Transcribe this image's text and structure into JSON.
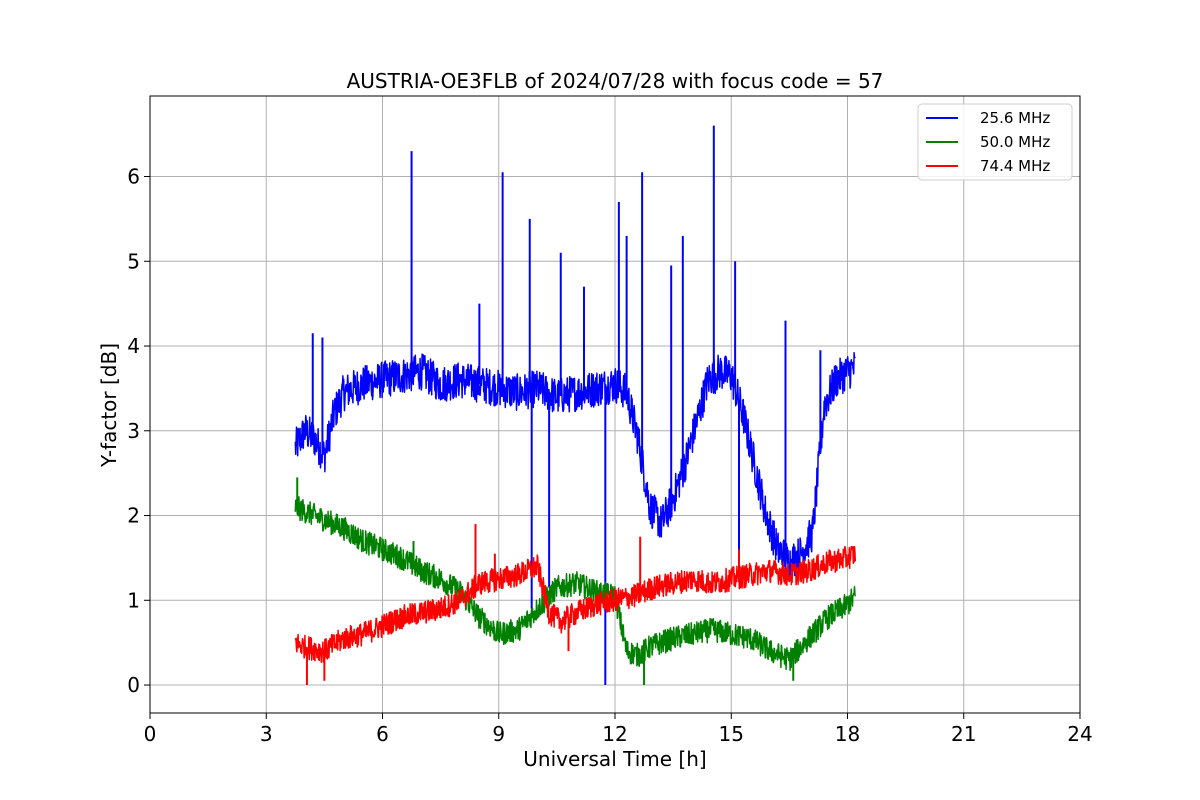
{
  "chart_data": {
    "type": "line",
    "title": "AUSTRIA-OE3FLB of 2024/07/28 with focus code = 57",
    "xlabel": "Universal Time [h]",
    "ylabel": "Y-factor [dB]",
    "xlim": [
      0,
      24
    ],
    "ylim": [
      -0.33,
      6.95
    ],
    "xticks": [
      0,
      3,
      6,
      9,
      12,
      15,
      18,
      21,
      24
    ],
    "yticks": [
      0,
      1,
      2,
      3,
      4,
      5,
      6
    ],
    "grid": true,
    "legend": "top-right",
    "series": [
      {
        "name": "25.6 MHz",
        "color": "#0000ff",
        "x": [
          3.75,
          4.0,
          4.25,
          4.5,
          4.75,
          5.0,
          5.5,
          6.0,
          6.5,
          7.0,
          7.5,
          8.0,
          8.5,
          9.0,
          9.5,
          10.0,
          10.5,
          11.0,
          11.5,
          12.0,
          12.3,
          12.6,
          12.9,
          13.2,
          13.5,
          13.8,
          14.1,
          14.4,
          14.7,
          15.0,
          15.3,
          15.6,
          15.9,
          16.2,
          16.5,
          16.8,
          17.1,
          17.4,
          17.7,
          18.0,
          18.2
        ],
        "y": [
          2.8,
          3.0,
          2.9,
          2.7,
          3.2,
          3.45,
          3.55,
          3.6,
          3.65,
          3.7,
          3.55,
          3.6,
          3.55,
          3.5,
          3.45,
          3.5,
          3.4,
          3.45,
          3.5,
          3.55,
          3.45,
          2.9,
          2.1,
          1.9,
          2.2,
          2.6,
          3.1,
          3.6,
          3.7,
          3.65,
          3.2,
          2.6,
          2.0,
          1.6,
          1.45,
          1.55,
          1.8,
          3.3,
          3.6,
          3.7,
          3.75
        ],
        "spikes": [
          [
            4.2,
            4.15
          ],
          [
            4.45,
            4.1
          ],
          [
            6.75,
            6.3
          ],
          [
            8.5,
            4.5
          ],
          [
            9.1,
            6.05
          ],
          [
            9.8,
            5.5
          ],
          [
            9.85,
            0.9
          ],
          [
            10.3,
            1.15
          ],
          [
            10.6,
            5.1
          ],
          [
            11.2,
            4.7
          ],
          [
            11.75,
            0.0
          ],
          [
            12.1,
            5.7
          ],
          [
            12.3,
            5.3
          ],
          [
            12.7,
            6.05
          ],
          [
            13.45,
            4.95
          ],
          [
            13.75,
            5.3
          ],
          [
            14.55,
            6.6
          ],
          [
            15.1,
            5.0
          ],
          [
            15.2,
            1.5
          ],
          [
            16.4,
            4.3
          ],
          [
            17.3,
            3.95
          ]
        ]
      },
      {
        "name": "50.0 MHz",
        "color": "#008000",
        "x": [
          3.75,
          4.0,
          4.5,
          5.0,
          5.5,
          6.0,
          6.5,
          7.0,
          7.5,
          8.0,
          8.5,
          9.0,
          9.5,
          10.0,
          10.5,
          11.0,
          11.5,
          12.0,
          12.3,
          12.6,
          12.9,
          13.2,
          13.5,
          14.0,
          14.5,
          15.0,
          15.5,
          16.0,
          16.5,
          17.0,
          17.5,
          18.0,
          18.2
        ],
        "y": [
          2.1,
          2.05,
          1.95,
          1.85,
          1.7,
          1.6,
          1.5,
          1.35,
          1.25,
          1.1,
          0.8,
          0.6,
          0.65,
          0.9,
          1.15,
          1.2,
          1.1,
          1.05,
          0.4,
          0.35,
          0.45,
          0.5,
          0.55,
          0.6,
          0.65,
          0.6,
          0.55,
          0.4,
          0.3,
          0.55,
          0.8,
          0.95,
          1.05
        ],
        "spikes": [
          [
            3.8,
            2.45
          ],
          [
            6.8,
            1.7
          ],
          [
            12.75,
            0.0
          ],
          [
            16.6,
            0.05
          ]
        ]
      },
      {
        "name": "74.4 MHz",
        "color": "#ff0000",
        "x": [
          3.75,
          4.0,
          4.5,
          5.0,
          5.5,
          6.0,
          6.5,
          7.0,
          7.5,
          8.0,
          8.5,
          9.0,
          9.5,
          10.0,
          10.3,
          10.6,
          11.0,
          11.5,
          12.0,
          12.5,
          13.0,
          13.5,
          14.0,
          14.5,
          15.0,
          15.5,
          16.0,
          16.5,
          17.0,
          17.5,
          18.0,
          18.2
        ],
        "y": [
          0.5,
          0.45,
          0.4,
          0.55,
          0.6,
          0.7,
          0.8,
          0.85,
          0.9,
          1.0,
          1.2,
          1.25,
          1.3,
          1.4,
          0.85,
          0.75,
          0.85,
          0.95,
          1.0,
          1.05,
          1.15,
          1.2,
          1.25,
          1.2,
          1.25,
          1.3,
          1.35,
          1.3,
          1.35,
          1.45,
          1.5,
          1.55
        ],
        "spikes": [
          [
            4.05,
            0.0
          ],
          [
            4.5,
            0.05
          ],
          [
            8.4,
            1.9
          ],
          [
            8.9,
            1.55
          ],
          [
            10.8,
            0.4
          ],
          [
            12.65,
            1.75
          ],
          [
            15.2,
            1.6
          ]
        ]
      }
    ]
  }
}
